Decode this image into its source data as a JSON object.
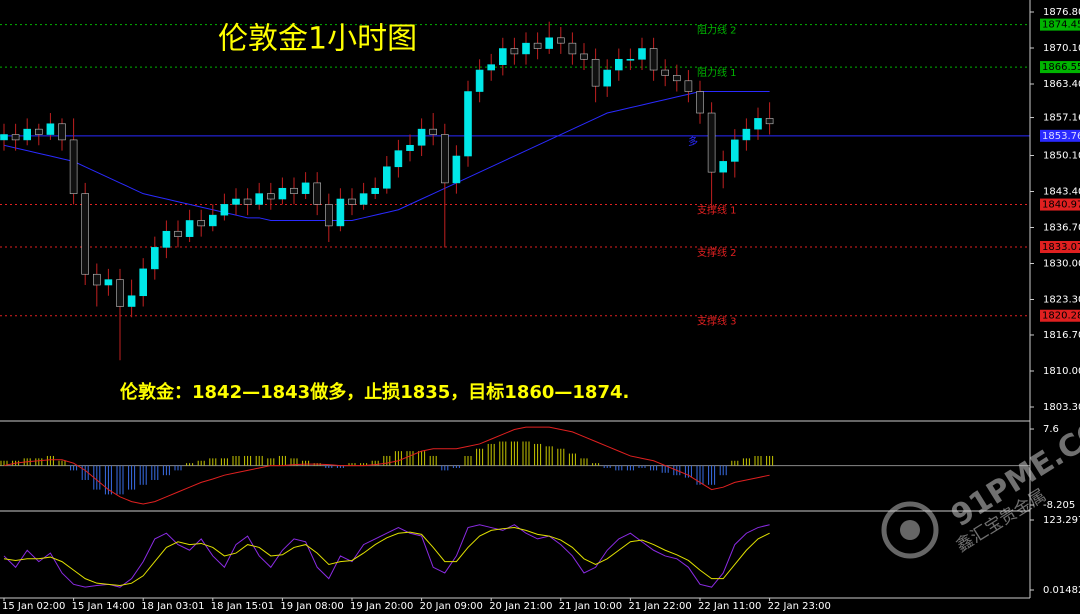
{
  "chart_data": {
    "type": "candlestick",
    "title": "伦敦金1小时图",
    "annotation": "伦敦金：1842—1843做多，止损1835，目标1860—1874.",
    "categories": [
      "15 Jan 02:00",
      null,
      null,
      null,
      null,
      null,
      "15 Jan 14:00",
      null,
      null,
      null,
      null,
      null,
      "18 Jan 03:01",
      null,
      null,
      null,
      null,
      null,
      "18 Jan 15:01",
      null,
      null,
      null,
      null,
      null,
      "19 Jan 08:00",
      null,
      null,
      null,
      null,
      null,
      "19 Jan 20:00",
      null,
      null,
      null,
      null,
      null,
      "20 Jan 09:00",
      null,
      null,
      null,
      null,
      null,
      "20 Jan 21:00",
      null,
      null,
      null,
      null,
      null,
      "21 Jan 10:00",
      null,
      null,
      null,
      null,
      null,
      "21 Jan 22:00",
      null,
      null,
      null,
      null,
      null,
      "22 Jan 11:00",
      null,
      null,
      null,
      null,
      null,
      "22 Jan 23:00"
    ],
    "open": [
      1853,
      1854,
      1853,
      1855,
      1854,
      1856,
      1853,
      1843,
      1828,
      1826,
      1827,
      1822,
      1824,
      1829,
      1833,
      1836,
      1835,
      1838,
      1837,
      1839,
      1841,
      1842,
      1841,
      1843,
      1842,
      1844,
      1843,
      1845,
      1841,
      1837,
      1842,
      1841,
      1843,
      1844,
      1848,
      1851,
      1852,
      1855,
      1854,
      1845,
      1850,
      1862,
      1866,
      1867,
      1870,
      1869,
      1871,
      1870,
      1872,
      1871,
      1869,
      1868,
      1863,
      1866,
      1868,
      1868,
      1870,
      1866,
      1865,
      1864,
      1862,
      1858,
      1847,
      1849,
      1853,
      1855,
      1857
    ],
    "high": [
      1856,
      1856,
      1857,
      1856,
      1858,
      1857,
      1857,
      1845,
      1830,
      1829,
      1829,
      1827,
      1831,
      1835,
      1838,
      1838,
      1840,
      1840,
      1841,
      1843,
      1844,
      1844,
      1845,
      1845,
      1846,
      1846,
      1847,
      1847,
      1843,
      1844,
      1844,
      1845,
      1846,
      1850,
      1853,
      1854,
      1857,
      1858,
      1856,
      1852,
      1864,
      1868,
      1869,
      1872,
      1872,
      1873,
      1873,
      1875,
      1874,
      1873,
      1871,
      1870,
      1868,
      1870,
      1870,
      1872,
      1872,
      1868,
      1867,
      1866,
      1864,
      1860,
      1851,
      1855,
      1857,
      1859,
      1860
    ],
    "low": [
      1851,
      1851,
      1852,
      1852,
      1853,
      1851,
      1841,
      1826,
      1822,
      1824,
      1812,
      1820,
      1822,
      1827,
      1831,
      1833,
      1834,
      1835,
      1836,
      1838,
      1839,
      1839,
      1840,
      1840,
      1841,
      1841,
      1842,
      1839,
      1834,
      1836,
      1839,
      1840,
      1842,
      1843,
      1846,
      1849,
      1850,
      1852,
      1833,
      1843,
      1848,
      1860,
      1864,
      1865,
      1867,
      1867,
      1868,
      1869,
      1869,
      1867,
      1866,
      1860,
      1861,
      1864,
      1866,
      1866,
      1864,
      1863,
      1862,
      1860,
      1856,
      1840,
      1844,
      1846,
      1851,
      1853,
      1854
    ],
    "close": [
      1854,
      1853,
      1855,
      1854,
      1856,
      1853,
      1843,
      1828,
      1826,
      1827,
      1822,
      1824,
      1829,
      1833,
      1836,
      1835,
      1838,
      1837,
      1839,
      1841,
      1842,
      1841,
      1843,
      1842,
      1844,
      1843,
      1845,
      1841,
      1837,
      1842,
      1841,
      1843,
      1844,
      1848,
      1851,
      1852,
      1855,
      1854,
      1845,
      1850,
      1862,
      1866,
      1867,
      1870,
      1869,
      1871,
      1870,
      1872,
      1871,
      1869,
      1868,
      1863,
      1866,
      1868,
      1868,
      1870,
      1866,
      1865,
      1864,
      1862,
      1858,
      1847,
      1849,
      1853,
      1855,
      1857,
      1856
    ],
    "up_color": "#00e8e8",
    "down_color": "#101010",
    "wick_color": "#c02020",
    "moving_average": {
      "color": "#2a2aff",
      "values": [
        1852,
        1851.5,
        1851,
        1850.5,
        1850,
        1849.5,
        1849,
        1848,
        1847,
        1846,
        1845,
        1844,
        1843,
        1842.5,
        1842,
        1841.5,
        1841,
        1840.5,
        1840,
        1839.5,
        1839,
        1838.5,
        1838.5,
        1838,
        1838,
        1838,
        1838,
        1838,
        1838,
        1838,
        1838,
        1838.5,
        1839,
        1839.5,
        1840,
        1841,
        1842,
        1843,
        1844,
        1845,
        1846,
        1847,
        1848,
        1849,
        1850,
        1851,
        1852,
        1853,
        1854,
        1855,
        1856,
        1857,
        1858,
        1858.5,
        1859,
        1859.5,
        1860,
        1860.5,
        1861,
        1861.5,
        1862,
        1862,
        1862,
        1862,
        1862,
        1862,
        1862
      ]
    },
    "ylim": [
      1800.88,
      1878.66
    ],
    "yticks": [
      {
        "value": 1876.8,
        "label": "1876.80"
      },
      {
        "value": 1870.1,
        "label": "1870.10"
      },
      {
        "value": 1863.4,
        "label": "1863.40"
      },
      {
        "value": 1857.16,
        "label": "1857.16"
      },
      {
        "value": 1850.1,
        "label": "1850.10"
      },
      {
        "value": 1843.4,
        "label": "1843.40"
      },
      {
        "value": 1836.7,
        "label": "1836.70"
      },
      {
        "value": 1830,
        "label": "1830.00"
      },
      {
        "value": 1823.3,
        "label": "1823.30"
      },
      {
        "value": 1816.7,
        "label": "1816.70"
      },
      {
        "value": 1810,
        "label": "1810.00"
      },
      {
        "value": 1803.3,
        "label": "1803.30"
      }
    ],
    "levels": [
      {
        "name": "阻力线 2",
        "value": 1874.45,
        "label": "1874.45",
        "color": "#00b400"
      },
      {
        "name": "阻力线 1",
        "value": 1866.55,
        "label": "1866.55",
        "color": "#00b400"
      },
      {
        "name": "多",
        "value": 1853.76,
        "label": "1853.76",
        "color": "#2a2aff"
      },
      {
        "name": "支撑线 1",
        "value": 1840.97,
        "label": "1840.97",
        "color": "#e02020"
      },
      {
        "name": "支撑线 2",
        "value": 1833.07,
        "label": "1833.07",
        "color": "#e02020"
      },
      {
        "name": "支撑线 3",
        "value": 1820.28,
        "label": "1820.28",
        "color": "#e02020"
      }
    ],
    "macd": {
      "ylim": [
        -9.24,
        9.06
      ],
      "yticks": [
        7.6,
        -8.205
      ],
      "histogram": [
        1,
        1,
        1.5,
        1.5,
        2,
        1,
        -1,
        -3,
        -5,
        -6,
        -6,
        -5,
        -4,
        -3,
        -2,
        -1,
        0.5,
        1,
        1.5,
        1.5,
        2,
        2,
        2,
        1.5,
        2,
        1.5,
        1,
        0.5,
        -0.5,
        -0.5,
        0.5,
        0.5,
        1,
        2,
        3,
        3,
        3,
        2,
        -1,
        -0.5,
        2,
        3.5,
        4.5,
        5,
        5,
        5,
        4.5,
        4,
        3.5,
        2.5,
        1.5,
        0.5,
        -0.5,
        -1,
        -1,
        -0.5,
        -1,
        -1.5,
        -2,
        -2.5,
        -4,
        -4,
        -2,
        1,
        1.5,
        2,
        2
      ],
      "signal": [
        0,
        0.5,
        0.8,
        1,
        1.2,
        1.2,
        0.5,
        -1,
        -3,
        -5,
        -6.5,
        -7.5,
        -8,
        -7.5,
        -6.5,
        -5.5,
        -4.5,
        -3.5,
        -2.8,
        -2,
        -1.5,
        -1,
        -0.5,
        0,
        0,
        0.2,
        0.3,
        0.3,
        0.2,
        0,
        0,
        0,
        0.2,
        0.5,
        1,
        2,
        3,
        3.5,
        3.5,
        3.5,
        4,
        4.5,
        5.5,
        6.5,
        7.5,
        8,
        8,
        8,
        7.5,
        7,
        6,
        5,
        4,
        3,
        2,
        1.5,
        1,
        0,
        -1,
        -2,
        -3.5,
        -5,
        -4.5,
        -3.5,
        -3,
        -2.5,
        -2
      ],
      "up_color": "#c8c800",
      "down_color": "#3a6ee8",
      "signal_color": "#e02020"
    },
    "oscillator": {
      "ylim": [
        -14.1,
        137.4
      ],
      "yticks": [
        {
          "value": 123.2974,
          "label": "123.2974"
        },
        {
          "value": 0.01482,
          "label": "0.01482"
        }
      ],
      "main": {
        "color": "#8a2be2",
        "values": [
          60,
          40,
          70,
          50,
          65,
          30,
          10,
          5,
          8,
          10,
          5,
          20,
          50,
          90,
          100,
          80,
          70,
          90,
          60,
          40,
          80,
          95,
          60,
          40,
          70,
          90,
          85,
          40,
          20,
          60,
          50,
          80,
          90,
          100,
          110,
          100,
          95,
          40,
          30,
          60,
          110,
          115,
          110,
          105,
          115,
          100,
          90,
          95,
          80,
          60,
          30,
          40,
          70,
          90,
          100,
          85,
          70,
          60,
          55,
          40,
          10,
          5,
          30,
          80,
          100,
          110,
          115
        ]
      },
      "signal": {
        "color": "#e0e000",
        "values": [
          55,
          52,
          55,
          55,
          58,
          50,
          35,
          20,
          12,
          10,
          8,
          12,
          25,
          50,
          75,
          85,
          80,
          82,
          75,
          60,
          65,
          80,
          75,
          60,
          62,
          75,
          80,
          65,
          45,
          50,
          52,
          65,
          80,
          92,
          100,
          102,
          98,
          75,
          50,
          50,
          75,
          95,
          105,
          108,
          110,
          105,
          98,
          95,
          88,
          75,
          55,
          45,
          55,
          70,
          85,
          88,
          80,
          70,
          62,
          52,
          35,
          20,
          20,
          45,
          70,
          90,
          100
        ]
      }
    }
  },
  "watermark": {
    "site": "91PME.COM",
    "brand": "鑫汇宝贵金属"
  }
}
